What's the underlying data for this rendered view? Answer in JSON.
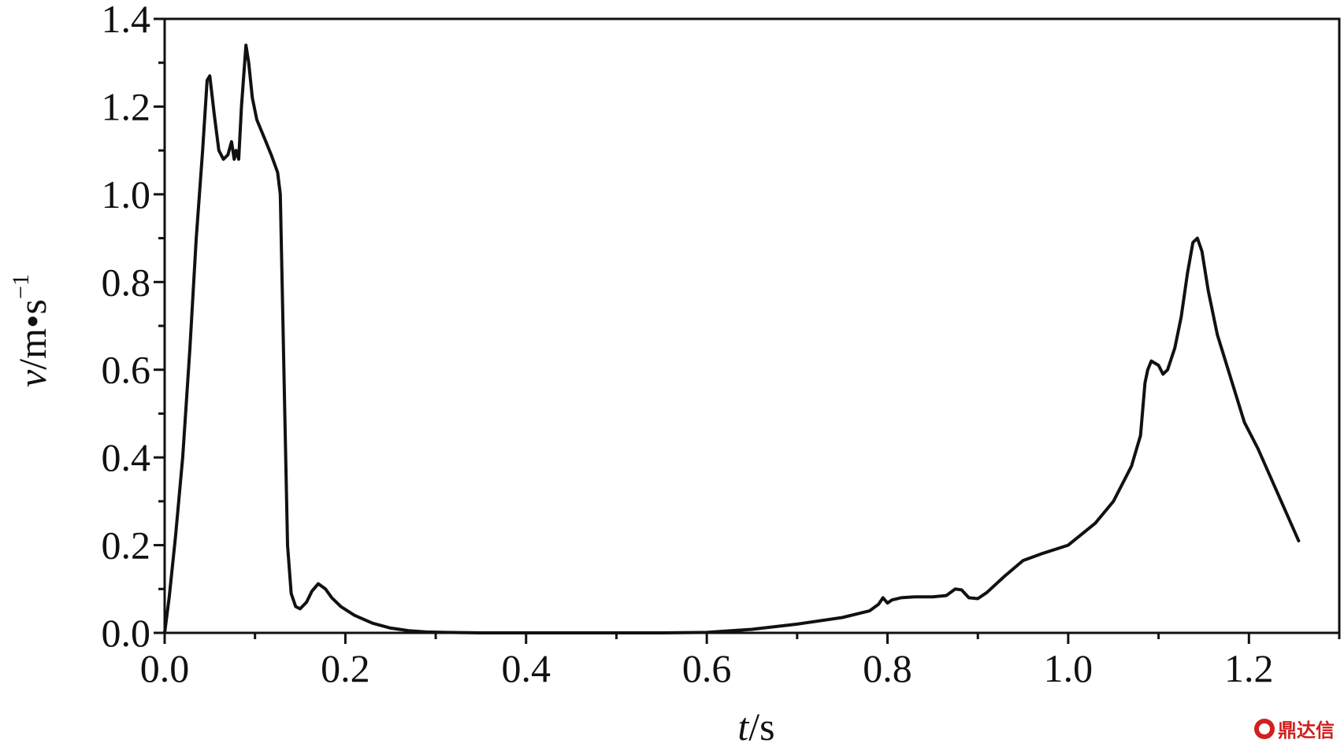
{
  "chart_data": {
    "type": "line",
    "title": "",
    "xlabel_italic": "t",
    "xlabel_unit": "/s",
    "ylabel_italic": "v",
    "ylabel_unit": "/m•s",
    "ylabel_exponent": "−1",
    "xlim": [
      0.0,
      1.3
    ],
    "ylim": [
      0.0,
      1.4
    ],
    "xticks": [
      "0.0",
      "0.2",
      "0.4",
      "0.6",
      "0.8",
      "1.0",
      "1.2"
    ],
    "yticks": [
      "0.0",
      "0.2",
      "0.4",
      "0.6",
      "0.8",
      "1.0",
      "1.2",
      "1.4"
    ],
    "grid": false,
    "legend": "none",
    "line_color": "#111111",
    "series": [
      {
        "x": [
          0.0,
          0.005,
          0.012,
          0.02,
          0.028,
          0.035,
          0.042,
          0.047,
          0.05,
          0.055,
          0.06,
          0.065,
          0.07,
          0.074,
          0.077,
          0.079,
          0.082,
          0.085,
          0.09,
          0.093,
          0.097,
          0.102,
          0.11,
          0.118,
          0.125,
          0.128,
          0.13,
          0.133,
          0.136,
          0.14,
          0.145,
          0.15,
          0.157,
          0.163,
          0.17,
          0.178,
          0.185,
          0.195,
          0.21,
          0.23,
          0.25,
          0.27,
          0.29,
          0.31,
          0.35,
          0.4,
          0.45,
          0.5,
          0.55,
          0.6,
          0.65,
          0.7,
          0.75,
          0.78,
          0.79,
          0.795,
          0.8,
          0.805,
          0.815,
          0.83,
          0.85,
          0.865,
          0.875,
          0.882,
          0.89,
          0.9,
          0.91,
          0.93,
          0.95,
          0.97,
          1.0,
          1.03,
          1.05,
          1.07,
          1.08,
          1.085,
          1.088,
          1.092,
          1.1,
          1.105,
          1.11,
          1.118,
          1.125,
          1.132,
          1.138,
          1.143,
          1.148,
          1.155,
          1.165,
          1.18,
          1.195,
          1.21,
          1.225,
          1.24,
          1.255
        ],
        "y": [
          0.0,
          0.08,
          0.22,
          0.4,
          0.65,
          0.9,
          1.1,
          1.26,
          1.27,
          1.18,
          1.1,
          1.08,
          1.09,
          1.12,
          1.08,
          1.1,
          1.08,
          1.2,
          1.34,
          1.3,
          1.22,
          1.17,
          1.13,
          1.09,
          1.05,
          1.0,
          0.8,
          0.5,
          0.2,
          0.09,
          0.06,
          0.055,
          0.07,
          0.095,
          0.112,
          0.1,
          0.08,
          0.06,
          0.04,
          0.022,
          0.011,
          0.005,
          0.002,
          0.001,
          0.0,
          0.0,
          0.0,
          0.0,
          0.0,
          0.001,
          0.008,
          0.02,
          0.035,
          0.05,
          0.065,
          0.08,
          0.068,
          0.075,
          0.08,
          0.082,
          0.082,
          0.085,
          0.1,
          0.098,
          0.08,
          0.078,
          0.092,
          0.13,
          0.165,
          0.18,
          0.2,
          0.25,
          0.3,
          0.38,
          0.45,
          0.57,
          0.6,
          0.62,
          0.61,
          0.59,
          0.6,
          0.65,
          0.72,
          0.82,
          0.89,
          0.9,
          0.87,
          0.78,
          0.68,
          0.58,
          0.48,
          0.42,
          0.35,
          0.28,
          0.21
        ]
      }
    ]
  },
  "watermark": {
    "text": "鼎达信",
    "icon": "circle-logo-icon",
    "color": "#d0201f"
  }
}
